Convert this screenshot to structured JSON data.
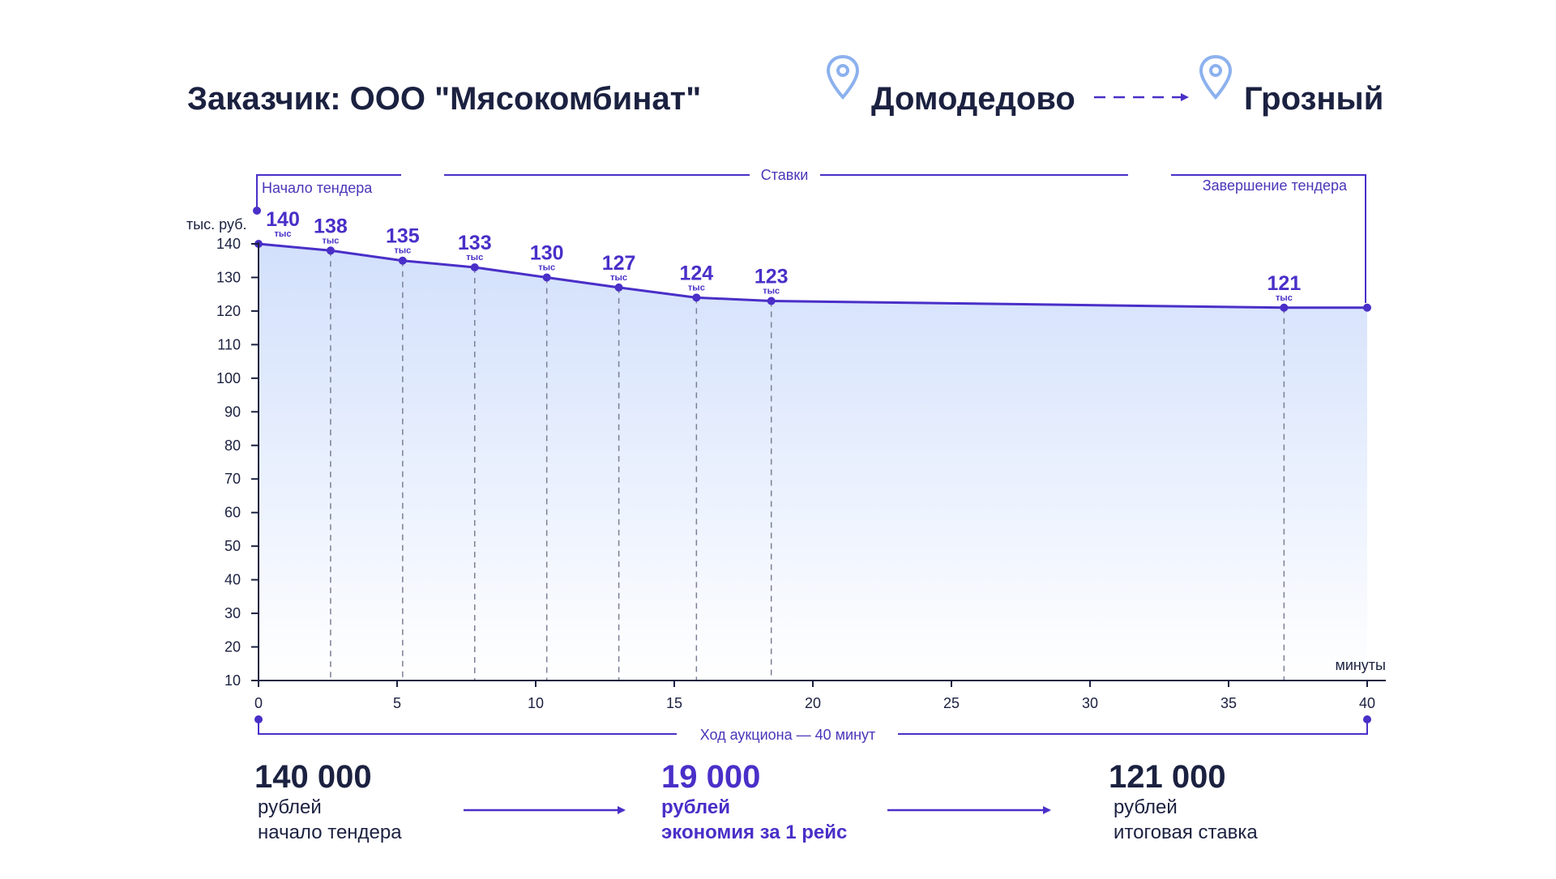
{
  "header": {
    "customer": "Заказчик: ООО \"Мясокомбинат\"",
    "origin": "Домодедово",
    "destination": "Грозный"
  },
  "brackets": {
    "start": "Начало тендера",
    "bids": "Ставки",
    "end": "Завершение тендера",
    "duration": "Ход аукциона — 40 минут"
  },
  "chart_data": {
    "type": "area",
    "title": "",
    "xlabel": "минуты",
    "ylabel": "тыс. руб.",
    "xlim": [
      0,
      40
    ],
    "ylim": [
      10,
      140
    ],
    "x_ticks": [
      0,
      5,
      10,
      15,
      20,
      25,
      30,
      35,
      40
    ],
    "y_ticks": [
      10,
      20,
      30,
      40,
      50,
      60,
      70,
      80,
      90,
      100,
      110,
      120,
      130,
      140
    ],
    "series": [
      {
        "name": "Ставки",
        "x": [
          0,
          2.6,
          5.2,
          7.8,
          10.4,
          13.0,
          15.8,
          18.5,
          37.0,
          40
        ],
        "values": [
          140,
          138,
          135,
          133,
          130,
          127,
          124,
          123,
          121,
          121
        ]
      }
    ],
    "point_labels": [
      {
        "x": 0,
        "y": 140,
        "text": "140",
        "unit": "тыс"
      },
      {
        "x": 2.6,
        "y": 138,
        "text": "138",
        "unit": "тыс"
      },
      {
        "x": 5.2,
        "y": 135,
        "text": "135",
        "unit": "тыс"
      },
      {
        "x": 7.8,
        "y": 133,
        "text": "133",
        "unit": "тыс"
      },
      {
        "x": 10.4,
        "y": 130,
        "text": "130",
        "unit": "тыс"
      },
      {
        "x": 13.0,
        "y": 127,
        "text": "127",
        "unit": "тыс"
      },
      {
        "x": 15.8,
        "y": 124,
        "text": "124",
        "unit": "тыс"
      },
      {
        "x": 18.5,
        "y": 123,
        "text": "123",
        "unit": "тыс"
      },
      {
        "x": 37.0,
        "y": 121,
        "text": "121",
        "unit": "тыс"
      }
    ],
    "dashed_drop_x": [
      2.6,
      5.2,
      7.8,
      10.4,
      13.0,
      15.8,
      18.5,
      37.0
    ]
  },
  "summary": [
    {
      "value": "140 000",
      "unit": "рублей",
      "caption": "начало тендера",
      "accent": false
    },
    {
      "value": "19 000",
      "unit": "рублей",
      "caption": "экономия за 1 рейс",
      "accent": true
    },
    {
      "value": "121 000",
      "unit": "рублей",
      "caption": "итоговая ставка",
      "accent": false
    }
  ],
  "colors": {
    "line": "#4a2fc8",
    "text": "#1b2140",
    "pin": "#8cb1ee",
    "fill_top": "#d2e0fc",
    "fill_bottom": "#ffffff",
    "dash": "#7b7f94"
  }
}
